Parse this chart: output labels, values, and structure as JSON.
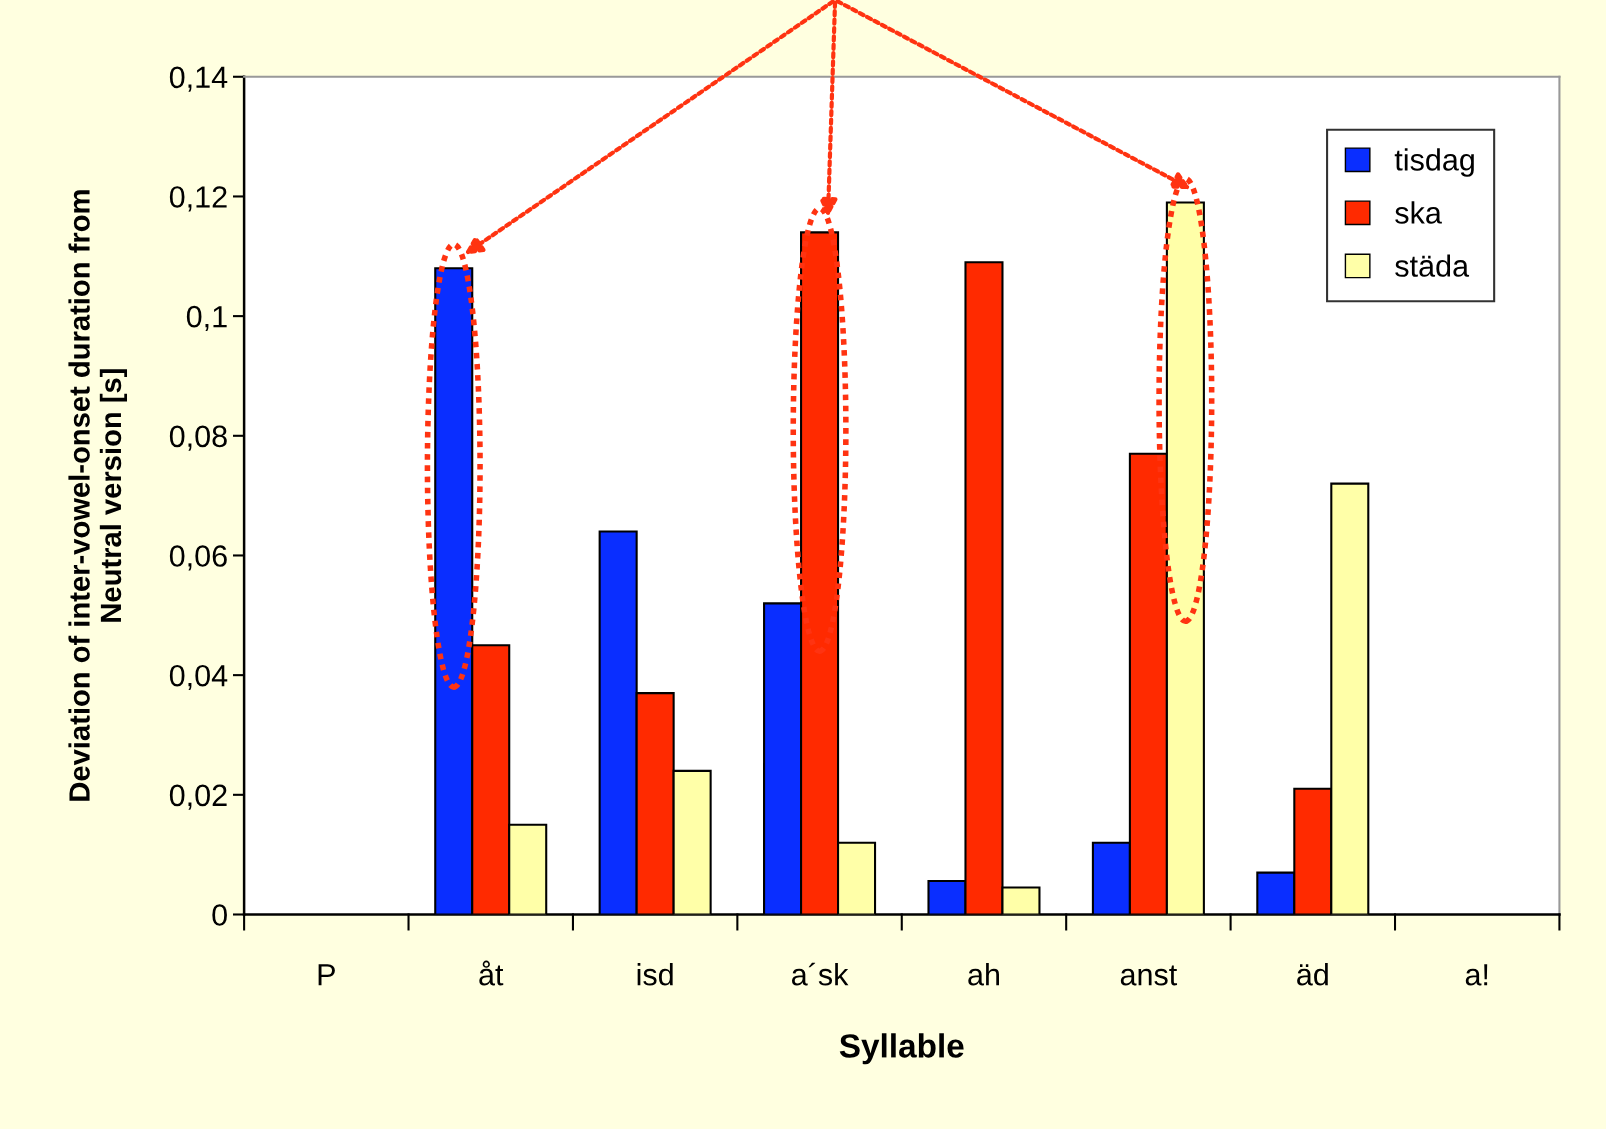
{
  "chart_data": {
    "type": "bar",
    "xlabel": "Syllable",
    "ylabel": "Deviation of inter-vowel-onset duration from\nNeutral version [s]",
    "categories": [
      "P",
      "åt",
      "isd",
      "a´sk",
      "ah",
      "anst",
      "äd",
      "a!"
    ],
    "series": [
      {
        "name": "tisdag",
        "color": "#0a2eff",
        "values": [
          null,
          0.108,
          0.064,
          0.052,
          0.0056,
          0.012,
          0.007,
          null
        ]
      },
      {
        "name": "ska",
        "color": "#ff2a00",
        "values": [
          null,
          0.045,
          0.037,
          0.114,
          0.109,
          0.077,
          0.021,
          null
        ]
      },
      {
        "name": "städa",
        "color": "#ffffa8",
        "values": [
          null,
          0.015,
          0.024,
          0.012,
          0.0045,
          0.119,
          0.072,
          null
        ]
      }
    ],
    "ylim": [
      0,
      0.14
    ],
    "yticks": [
      0,
      {
        "value": 0.02,
        "label": "0,02"
      },
      {
        "value": 0.04,
        "label": "0,04"
      },
      {
        "value": 0.06,
        "label": "0,06"
      },
      {
        "value": 0.08,
        "label": "0,08"
      },
      {
        "value": 0.1,
        "label": "0,1"
      },
      {
        "value": 0.12,
        "label": "0,12"
      },
      {
        "value": 0.14,
        "label": "0,14"
      }
    ],
    "grid": false,
    "legend": "top right"
  }
}
